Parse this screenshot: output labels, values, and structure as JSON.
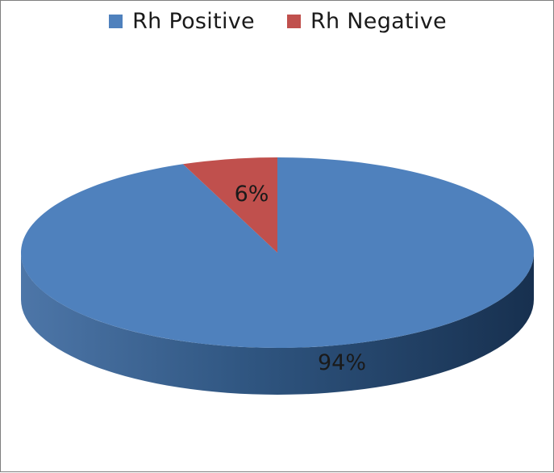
{
  "chart_data": {
    "type": "pie",
    "style": "3d",
    "series": [
      {
        "name": "Rh Positive",
        "value": 94,
        "label": "94%",
        "color": "#4f81bd"
      },
      {
        "name": "Rh Negative",
        "value": 6,
        "label": "6%",
        "color": "#c0504d"
      }
    ],
    "legend": {
      "position": "top"
    }
  }
}
